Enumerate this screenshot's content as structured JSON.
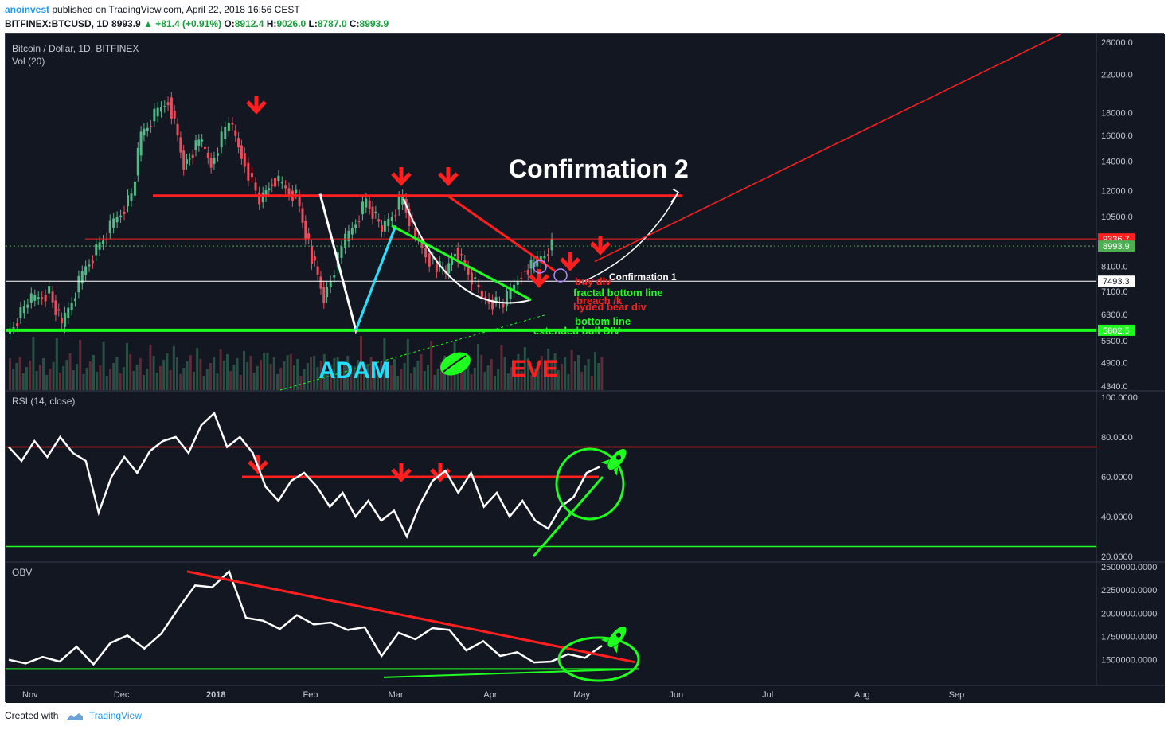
{
  "header": {
    "author": "anoinvest",
    "published": "published on TradingView.com, April 22, 2018 16:56 CEST"
  },
  "ohlc_line": {
    "symbol": "BITFINEX:BTCUSD, 1D",
    "last": "8993.9",
    "change": "+81.4 (+0.91%)",
    "o_label": "O:",
    "o": "8912.4",
    "h_label": "H:",
    "h": "9026.0",
    "l_label": "L:",
    "l": "8787.0",
    "c_label": "C:",
    "c": "8993.9"
  },
  "footer": {
    "created": "Created with",
    "brand": "TradingView"
  },
  "colors": {
    "background": "#131722",
    "up": "#53b987",
    "down": "#eb4d5c",
    "resistance": "#ff1f1f",
    "support": "#1fff1f",
    "rsi_line": "#ffffff",
    "adam_text": "#1fe0ff",
    "eve_text": "#ff1f1f"
  },
  "icons": [
    "down-arrow-icon",
    "leaf-icon",
    "rocket-icon",
    "tradingview-logo-icon"
  ],
  "chart_data": [
    {
      "type": "candlestick",
      "title": "Bitcoin / Dollar, 1D, BITFINEX",
      "volume_label": "Vol (20)",
      "scale": "log",
      "ylim": [
        4340,
        26000
      ],
      "y_ticks": [
        "26000.0",
        "22000.0",
        "18000.0",
        "16000.0",
        "14000.0",
        "12000.0",
        "10500.0",
        "8100.0",
        "7100.0",
        "6300.0",
        "5500.0",
        "4900.0",
        "4340.0"
      ],
      "y_tick_values": [
        26000,
        22000,
        18000,
        16000,
        14000,
        12000,
        10500,
        8100,
        7100,
        6300,
        5500,
        4900,
        4340
      ],
      "x_ticks": [
        "Nov",
        "Dec",
        "2018",
        "Feb",
        "Mar",
        "Apr",
        "May",
        "Jun",
        "Jul",
        "Aug",
        "Sep"
      ],
      "price_labels": [
        {
          "value": 9336.7,
          "text": "9336.7",
          "color": "#ff1f1f"
        },
        {
          "value": 8993.9,
          "text": "8993.9",
          "color": "#4caf50"
        },
        {
          "value": 7493.3,
          "text": "7493.3",
          "color": "#ffffff"
        },
        {
          "value": 5802.5,
          "text": "5802.5",
          "color": "#1fff1f"
        }
      ],
      "close_series": [
        {
          "date": "2017-10-25",
          "close": 5700
        },
        {
          "date": "2017-11-01",
          "close": 6700
        },
        {
          "date": "2017-11-08",
          "close": 7100
        },
        {
          "date": "2017-11-12",
          "close": 5900
        },
        {
          "date": "2017-11-20",
          "close": 8100
        },
        {
          "date": "2017-11-28",
          "close": 9900
        },
        {
          "date": "2017-12-05",
          "close": 11700
        },
        {
          "date": "2017-12-08",
          "close": 16000
        },
        {
          "date": "2017-12-17",
          "close": 19500
        },
        {
          "date": "2017-12-22",
          "close": 13800
        },
        {
          "date": "2017-12-27",
          "close": 15500
        },
        {
          "date": "2017-12-31",
          "close": 13800
        },
        {
          "date": "2018-01-06",
          "close": 17100
        },
        {
          "date": "2018-01-10",
          "close": 14600
        },
        {
          "date": "2018-01-16",
          "close": 11300
        },
        {
          "date": "2018-01-20",
          "close": 12800
        },
        {
          "date": "2018-01-28",
          "close": 11700
        },
        {
          "date": "2018-02-01",
          "close": 9000
        },
        {
          "date": "2018-02-06",
          "close": 6900
        },
        {
          "date": "2018-02-12",
          "close": 8900
        },
        {
          "date": "2018-02-20",
          "close": 11400
        },
        {
          "date": "2018-02-25",
          "close": 9700
        },
        {
          "date": "2018-03-04",
          "close": 11500
        },
        {
          "date": "2018-03-08",
          "close": 9400
        },
        {
          "date": "2018-03-14",
          "close": 8200
        },
        {
          "date": "2018-03-18",
          "close": 7800
        },
        {
          "date": "2018-03-21",
          "close": 8900
        },
        {
          "date": "2018-03-30",
          "close": 6900
        },
        {
          "date": "2018-04-06",
          "close": 6600
        },
        {
          "date": "2018-04-12",
          "close": 7900
        },
        {
          "date": "2018-04-16",
          "close": 8100
        },
        {
          "date": "2018-04-22",
          "close": 8993.9
        }
      ],
      "horizontal_lines": [
        {
          "name": "double-top-resistance",
          "value": 11700,
          "color": "#ff1f1f"
        },
        {
          "name": "resistance-9336",
          "value": 9336.7,
          "color": "#ff1f1f"
        },
        {
          "name": "level-7493",
          "value": 7493.3,
          "color": "#ffffff"
        },
        {
          "name": "support-5802",
          "value": 5802.5,
          "color": "#1fff1f"
        }
      ],
      "annotations": [
        {
          "name": "confirmation-2",
          "text": "Confirmation 2"
        },
        {
          "name": "confirmation-1",
          "text": "Confirmation 1"
        },
        {
          "name": "adam",
          "text": "ADAM"
        },
        {
          "name": "eve",
          "text": "EVE"
        },
        {
          "name": "note-buy",
          "text": "buy div"
        },
        {
          "name": "note-fractal",
          "text": "fractal bottom line"
        },
        {
          "name": "note-breach",
          "text": "breach /k"
        },
        {
          "name": "note-bear",
          "text": "hyded bear div"
        },
        {
          "name": "note-bottom",
          "text": "bottom line"
        },
        {
          "name": "note-extended",
          "text": "extended bull DIV"
        }
      ]
    },
    {
      "type": "line",
      "title": "RSI (14, close)",
      "ylim": [
        20,
        100
      ],
      "y_ticks": [
        "100.0000",
        "80.0000",
        "60.0000",
        "40.0000",
        "20.0000"
      ],
      "y_tick_values": [
        100,
        80,
        60,
        40,
        20
      ],
      "levels": [
        {
          "value": 75,
          "color": "#ff1f1f"
        },
        {
          "value": 60,
          "color": "#ff1f1f"
        },
        {
          "value": 25,
          "color": "#1fff1f"
        }
      ],
      "series": [
        {
          "values": [
            75,
            68,
            78,
            70,
            80,
            72,
            68,
            42,
            60,
            70,
            62,
            73,
            78,
            80,
            72,
            86,
            92,
            75,
            80,
            72,
            55,
            48,
            58,
            62,
            55,
            45,
            52,
            40,
            48,
            38,
            43,
            30,
            46,
            58,
            63,
            52,
            62,
            45,
            52,
            40,
            48,
            38,
            34,
            45,
            50,
            62,
            65
          ]
        }
      ]
    },
    {
      "type": "line",
      "title": "OBV",
      "ylim": [
        1300000,
        2500000
      ],
      "y_ticks": [
        "2500000.0000",
        "2250000.0000",
        "2000000.0000",
        "1750000.0000",
        "1500000.0000"
      ],
      "y_tick_values": [
        2500000,
        2250000,
        2000000,
        1750000,
        1500000
      ],
      "series": [
        {
          "values": [
            1500000,
            1460000,
            1530000,
            1480000,
            1640000,
            1450000,
            1680000,
            1760000,
            1620000,
            1780000,
            2050000,
            2300000,
            2280000,
            2450000,
            1950000,
            1920000,
            1830000,
            1980000,
            1880000,
            1900000,
            1820000,
            1850000,
            1540000,
            1790000,
            1720000,
            1840000,
            1820000,
            1600000,
            1700000,
            1540000,
            1580000,
            1470000,
            1480000,
            1560000,
            1520000,
            1650000
          ]
        }
      ]
    }
  ]
}
